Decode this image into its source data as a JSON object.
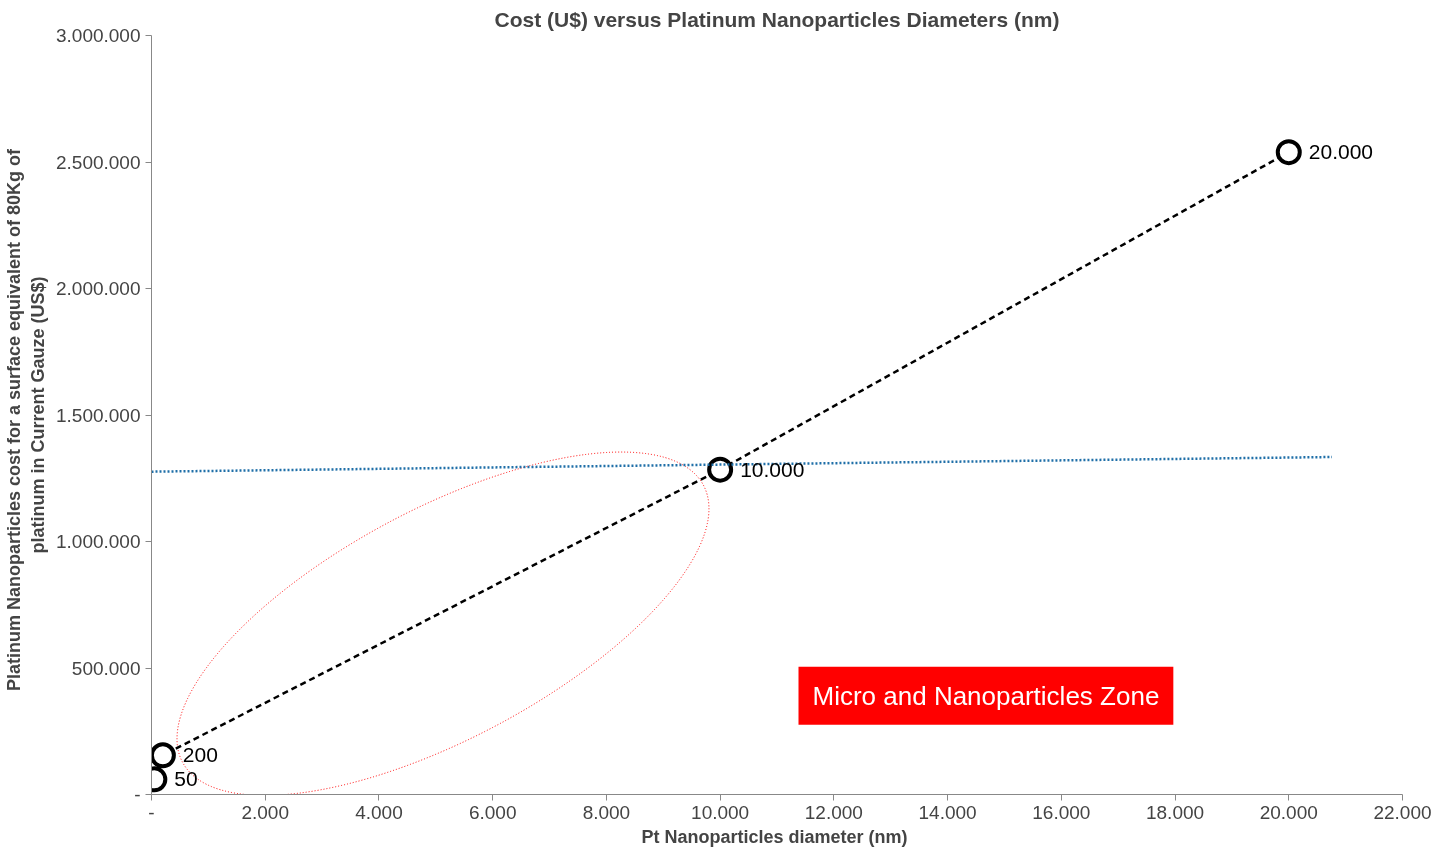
{
  "chart_data": {
    "type": "line",
    "title": "Cost (U$) versus Platinum Nanoparticles Diameters (nm)",
    "xlabel": "Pt Nanoparticles  diameter (nm)",
    "ylabel": "Platinum  Nanoparticles cost  for a surface equivalent of 80Kg of\nplatinum in Current Gauze (US$)",
    "series": [
      {
        "x": [
          50,
          200,
          10000,
          20000
        ],
        "values": [
          60000,
          155000,
          1284000,
          2539000
        ],
        "color": "#000000",
        "marker": "circle",
        "line_style": "dashed"
      },
      {
        "type": "line",
        "x": [
          0,
          20760
        ],
        "values": [
          1276000,
          1334000
        ],
        "color": "#1f6fa8",
        "marker": "none",
        "line_style": "dotted"
      }
    ],
    "xlim": [
      0,
      22000
    ],
    "xticks": [
      {
        "value": 0,
        "label": "-"
      },
      {
        "value": 2000,
        "label": "2.000"
      },
      {
        "value": 4000,
        "label": "4.000"
      },
      {
        "value": 6000,
        "label": "6.000"
      },
      {
        "value": 8000,
        "label": "8.000"
      },
      {
        "value": 10000,
        "label": "10.000"
      },
      {
        "value": 12000,
        "label": "12.000"
      },
      {
        "value": 14000,
        "label": "14.000"
      },
      {
        "value": 16000,
        "label": "16.000"
      },
      {
        "value": 18000,
        "label": "18.000"
      },
      {
        "value": 20000,
        "label": "20.000"
      },
      {
        "value": 22000,
        "label": "22.000"
      }
    ],
    "ylim": [
      0,
      3000000
    ],
    "yticks": [
      {
        "value": 0,
        "label": "-"
      },
      {
        "value": 500000,
        "label": "500.000"
      },
      {
        "value": 1000000,
        "label": "1.000.000"
      },
      {
        "value": 1500000,
        "label": "1.500.000"
      },
      {
        "value": 2000000,
        "label": "2.000.000"
      },
      {
        "value": 2500000,
        "label": "2.500.000"
      },
      {
        "value": 3000000,
        "label": "3.000.000"
      }
    ],
    "grid": false,
    "annotations": [
      "Micro and Nanoparticles Zone",
      {
        "text": "50",
        "x": 50,
        "y": 60000
      },
      {
        "text": "200",
        "x": 200,
        "y": 155000
      },
      {
        "text": "10.000",
        "x": 10000,
        "y": 1284000
      },
      {
        "text": "20.000",
        "x": 20000,
        "y": 2539000
      }
    ]
  }
}
